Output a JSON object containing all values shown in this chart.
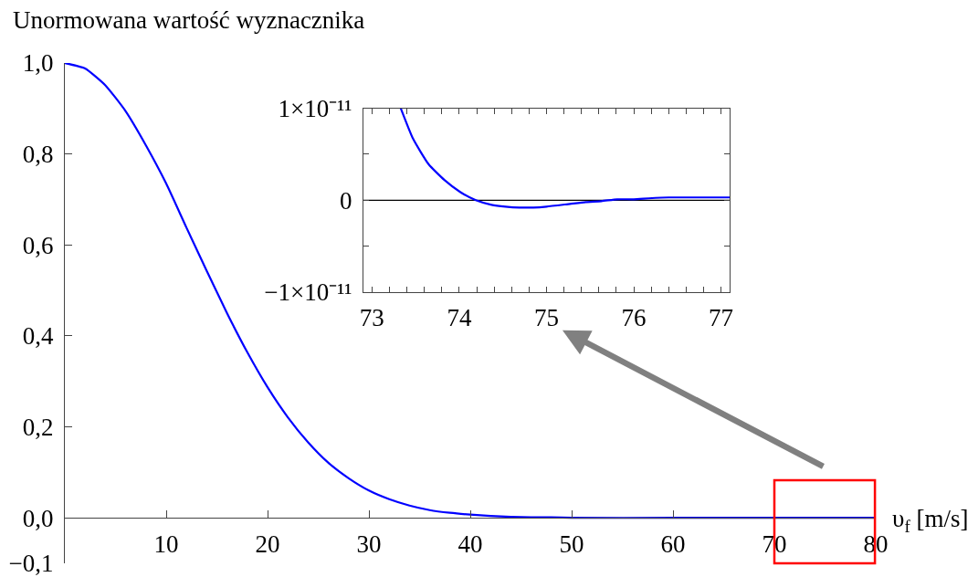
{
  "chart_data": [
    {
      "type": "line",
      "ylabel": "Unormowana wartość wyznacznika",
      "xlabel": "υ$_{f}$ [m/s]",
      "x": [
        0,
        2,
        4,
        6,
        8,
        10,
        12,
        14,
        16,
        18,
        20,
        22,
        24,
        26,
        28,
        30,
        32,
        34,
        36,
        38,
        40,
        42,
        44,
        46,
        48,
        50,
        60,
        70,
        80
      ],
      "series": [
        {
          "color": "#0000ff",
          "values": [
            1.0,
            0.988,
            0.951,
            0.894,
            0.819,
            0.735,
            0.638,
            0.543,
            0.45,
            0.364,
            0.287,
            0.221,
            0.166,
            0.121,
            0.087,
            0.06,
            0.041,
            0.027,
            0.017,
            0.011,
            0.007,
            0.004,
            0.002,
            0.001,
            0.001,
            0,
            0,
            0,
            0
          ]
        }
      ],
      "xlim": [
        0,
        80
      ],
      "ylim": [
        -0.1,
        1.0
      ],
      "xticks": [
        10,
        20,
        30,
        40,
        50,
        60,
        70,
        80
      ],
      "yticks": [
        {
          "value": -0.1,
          "label": "−0,1"
        },
        {
          "value": 0,
          "label": "0,0"
        },
        {
          "value": 0.2,
          "label": "0,2"
        },
        {
          "value": 0.4,
          "label": "0,4"
        },
        {
          "value": 0.6,
          "label": "0,6"
        },
        {
          "value": 0.8,
          "label": "0,8"
        },
        {
          "value": 1.0,
          "label": "1,0"
        }
      ]
    },
    {
      "type": "line",
      "x": [
        73.33,
        73.47,
        73.65,
        73.83,
        74.01,
        74.19,
        74.37,
        74.53,
        74.69,
        74.85,
        75.0,
        75.27,
        75.45,
        75.63,
        75.81,
        76.0,
        76.17,
        76.4,
        76.64,
        76.9,
        77.1
      ],
      "series": [
        {
          "color": "#0000ff",
          "values": [
            1e-11,
            6.7e-12,
            3.9e-12,
            2.2e-12,
            9e-13,
            0,
            -5e-13,
            -7e-13,
            -8e-13,
            -8e-13,
            -7e-13,
            -4e-13,
            -2e-13,
            -1e-13,
            1e-13,
            1e-13,
            2e-13,
            3e-13,
            3e-13,
            3e-13,
            3e-13
          ]
        }
      ],
      "xlim": [
        72.9,
        77.1
      ],
      "ylim": [
        -1e-11,
        1e-11
      ],
      "xticks": [
        73,
        {
          "value": 73.2,
          "label": null
        },
        {
          "value": 73.4,
          "label": null
        },
        {
          "value": 73.6,
          "label": null
        },
        {
          "value": 73.8,
          "label": null
        },
        74,
        {
          "value": 74.2,
          "label": null
        },
        {
          "value": 74.4,
          "label": null
        },
        {
          "value": 74.6,
          "label": null
        },
        {
          "value": 74.8,
          "label": null
        },
        75,
        {
          "value": 75.2,
          "label": null
        },
        {
          "value": 75.4,
          "label": null
        },
        {
          "value": 75.6,
          "label": null
        },
        {
          "value": 75.8,
          "label": null
        },
        76,
        {
          "value": 76.2,
          "label": null
        },
        {
          "value": 76.4,
          "label": null
        },
        {
          "value": 76.6,
          "label": null
        },
        {
          "value": 76.8,
          "label": null
        },
        77
      ],
      "yticks": [
        {
          "value": -1e-11,
          "label": "−1×10⁻¹¹"
        },
        {
          "value": -5e-12,
          "label": null
        },
        0,
        {
          "value": 5e-12,
          "label": null
        },
        {
          "value": 1e-11,
          "label": "1×10⁻¹¹"
        }
      ],
      "ref_lines": [
        {
          "axis": "y",
          "value": 0,
          "color": "#000000"
        }
      ]
    }
  ]
}
